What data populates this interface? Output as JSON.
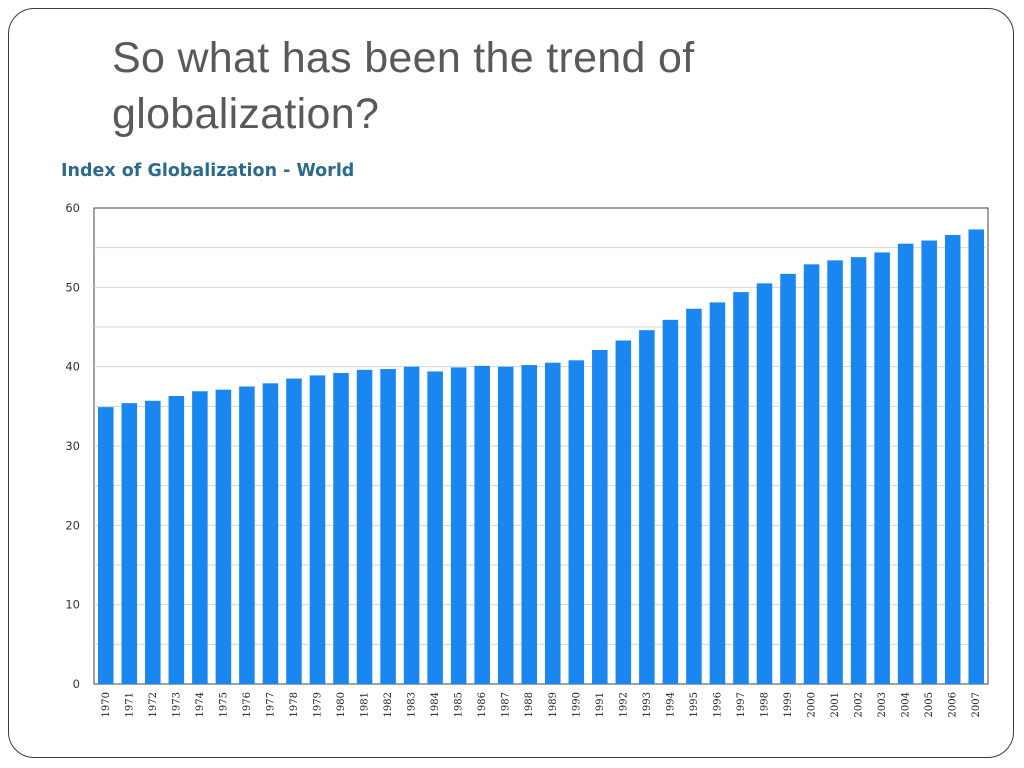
{
  "slide": {
    "title": "So what has been the trend of globalization?"
  },
  "chart_data": {
    "type": "bar",
    "title": "Index of Globalization - World",
    "xlabel": "",
    "ylabel": "",
    "ylim": [
      0,
      60
    ],
    "yticks": [
      0,
      10,
      20,
      30,
      40,
      50,
      60
    ],
    "grid": true,
    "bar_color": "#1a86f0",
    "categories": [
      "1970",
      "1971",
      "1972",
      "1973",
      "1974",
      "1975",
      "1976",
      "1977",
      "1978",
      "1979",
      "1980",
      "1981",
      "1982",
      "1983",
      "1984",
      "1985",
      "1986",
      "1987",
      "1988",
      "1989",
      "1990",
      "1991",
      "1992",
      "1993",
      "1994",
      "1995",
      "1996",
      "1997",
      "1998",
      "1999",
      "2000",
      "2001",
      "2002",
      "2003",
      "2004",
      "2005",
      "2006",
      "2007"
    ],
    "values": [
      34.9,
      35.4,
      35.7,
      36.3,
      36.9,
      37.1,
      37.5,
      37.9,
      38.5,
      38.9,
      39.2,
      39.6,
      39.7,
      40.0,
      39.4,
      39.9,
      40.1,
      40.0,
      40.2,
      40.5,
      40.8,
      42.1,
      43.3,
      44.6,
      45.9,
      47.3,
      48.1,
      49.4,
      50.5,
      51.7,
      52.9,
      53.4,
      53.8,
      54.4,
      55.5,
      55.9,
      56.6,
      57.3
    ]
  }
}
